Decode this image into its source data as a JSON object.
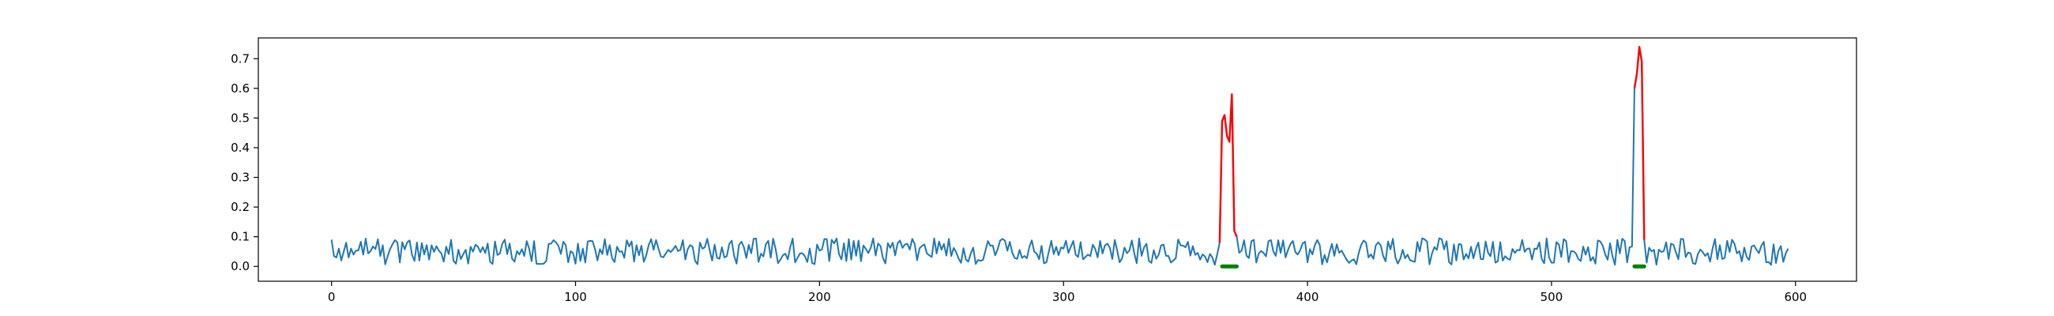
{
  "chart_data": {
    "type": "line",
    "title": "",
    "xlabel": "",
    "ylabel": "",
    "xlim": [
      -30,
      625
    ],
    "ylim": [
      -0.05,
      0.77
    ],
    "xticks": [
      0,
      100,
      200,
      300,
      400,
      500,
      600
    ],
    "yticks": [
      0.0,
      0.1,
      0.2,
      0.3,
      0.4,
      0.5,
      0.6,
      0.7
    ],
    "xtick_labels": [
      "0",
      "100",
      "200",
      "300",
      "400",
      "500",
      "600"
    ],
    "ytick_labels": [
      "0.0",
      "0.1",
      "0.2",
      "0.3",
      "0.4",
      "0.5",
      "0.6",
      "0.7"
    ],
    "grid": false,
    "legend": false,
    "colors": {
      "signal": "#1f77b4",
      "anomaly": "#ff0000",
      "marker": "#008000"
    },
    "signal": {
      "x_start": 0,
      "x_end": 597,
      "baseline_mean": 0.05,
      "noise_amplitude": 0.045,
      "y_sample": [
        0.09,
        0.035,
        0.03,
        0.06,
        0.02,
        0.05,
        0.08,
        0.03,
        0.06,
        0.04
      ]
    },
    "anomalies": [
      {
        "x": [
          364,
          365,
          366,
          367,
          368,
          369,
          370,
          371
        ],
        "y": [
          0.08,
          0.49,
          0.51,
          0.44,
          0.42,
          0.58,
          0.12,
          0.1
        ]
      },
      {
        "x": [
          534,
          535,
          536,
          537,
          538
        ],
        "y": [
          0.6,
          0.65,
          0.74,
          0.69,
          0.09
        ]
      }
    ],
    "markers": [
      {
        "x_start": 365,
        "x_end": 371,
        "y": 0.0
      },
      {
        "x_start": 534,
        "x_end": 538,
        "y": 0.0
      }
    ]
  }
}
